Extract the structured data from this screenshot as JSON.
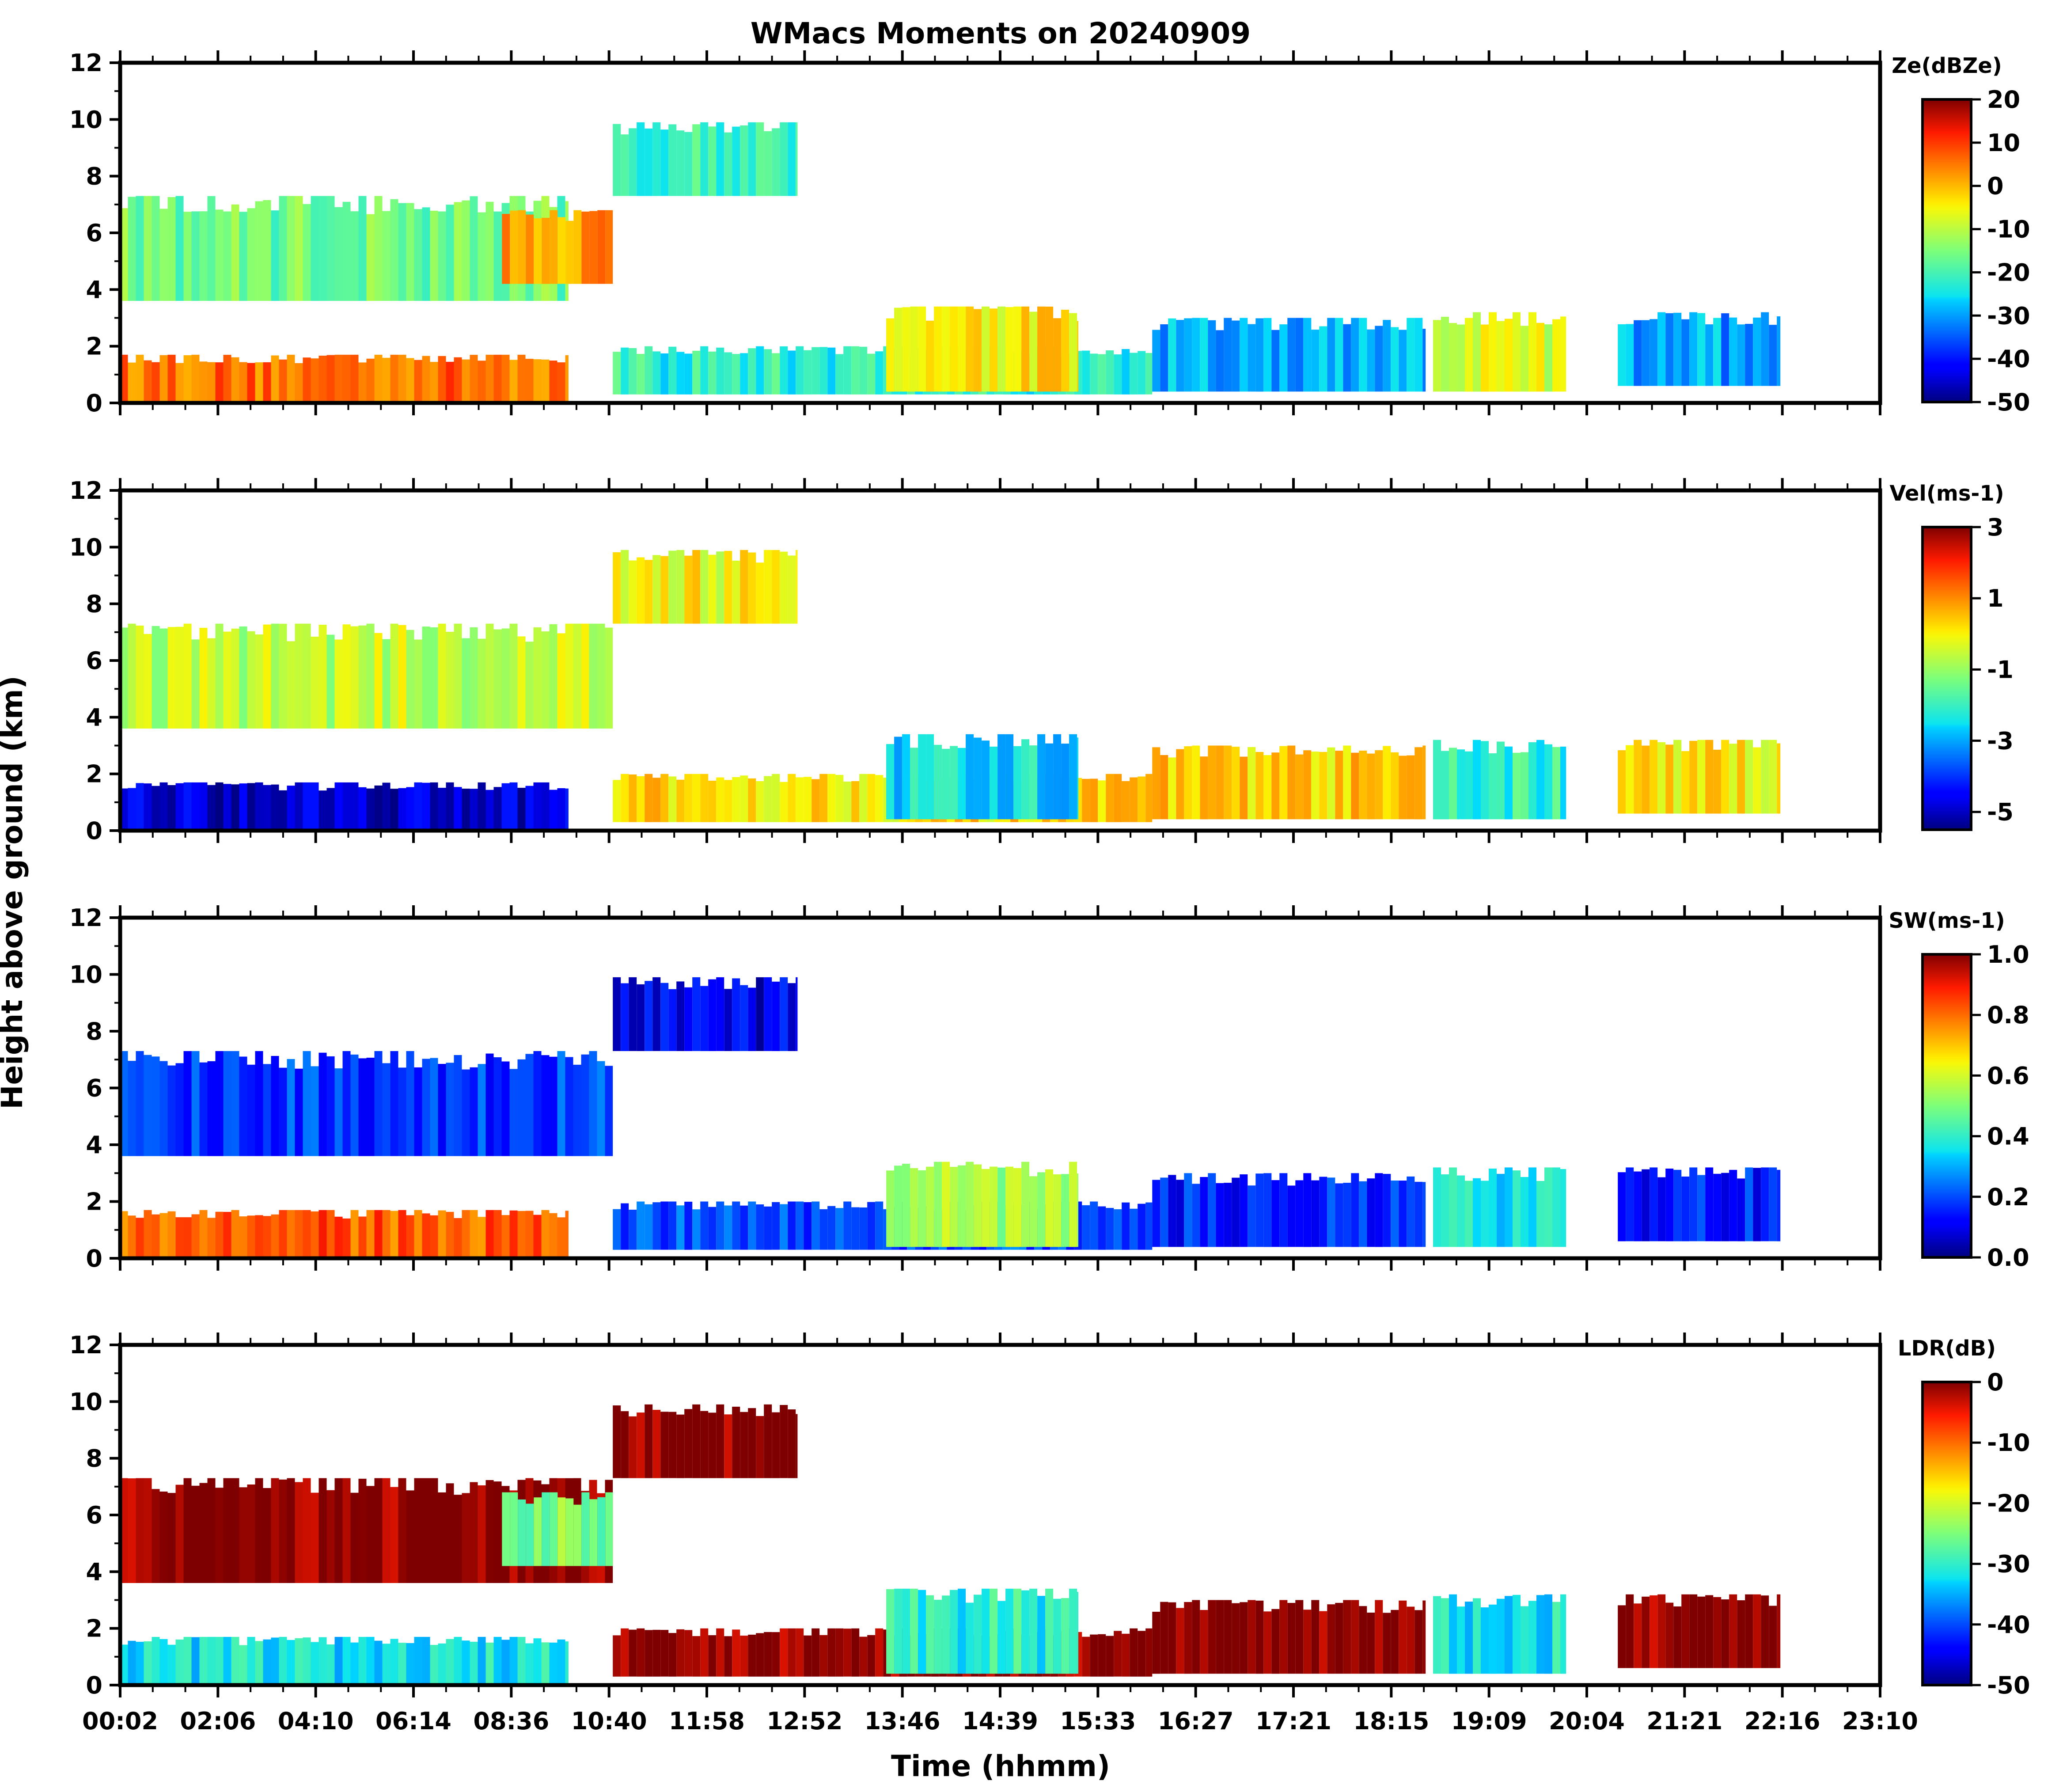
{
  "chart_data": {
    "type": "heatmap",
    "title": "WMacs Moments on 20240909",
    "xlabel": "Time (hhmm)",
    "ylabel": "Height above ground (km)",
    "x_range_hours": [
      0.033,
      23.85
    ],
    "x_tick_labels": [
      "00:02",
      "02:06",
      "04:10",
      "06:14",
      "08:36",
      "10:40",
      "11:58",
      "12:52",
      "13:46",
      "14:39",
      "15:33",
      "16:27",
      "17:21",
      "18:15",
      "19:09",
      "20:04",
      "21:21",
      "22:16",
      "23:10"
    ],
    "ylim": [
      0,
      12
    ],
    "y_ticks": [
      0,
      2,
      4,
      6,
      8,
      10,
      12
    ],
    "panels": [
      {
        "name": "Ze",
        "colorbar_label": "Ze(dBZe)",
        "colorbar_range": [
          -50,
          20
        ],
        "colorbar_ticks": [
          "20",
          "10",
          "0",
          "-10",
          "-20",
          "-30",
          "-40",
          "-50"
        ],
        "cloud_regions": [
          {
            "t0": 0.03,
            "t1": 6.1,
            "h0": 0.0,
            "h1": 1.7,
            "value": 6
          },
          {
            "t0": 0.03,
            "t1": 6.1,
            "h0": 3.6,
            "h1": 7.3,
            "value": -16
          },
          {
            "t0": 5.2,
            "t1": 6.7,
            "h0": 4.2,
            "h1": 6.8,
            "value": 2
          },
          {
            "t0": 6.7,
            "t1": 9.2,
            "h0": 7.3,
            "h1": 9.9,
            "value": -20
          },
          {
            "t0": 6.7,
            "t1": 14.0,
            "h0": 0.3,
            "h1": 2.0,
            "value": -22
          },
          {
            "t0": 10.4,
            "t1": 13.0,
            "h0": 0.4,
            "h1": 3.4,
            "value": -4
          },
          {
            "t0": 14.0,
            "t1": 17.7,
            "h0": 0.4,
            "h1": 3.0,
            "value": -30
          },
          {
            "t0": 17.8,
            "t1": 19.6,
            "h0": 0.4,
            "h1": 3.2,
            "value": -8
          },
          {
            "t0": 20.3,
            "t1": 22.5,
            "h0": 0.6,
            "h1": 3.2,
            "value": -30
          }
        ]
      },
      {
        "name": "Vel",
        "colorbar_label": "Vel(ms-1)",
        "colorbar_range": [
          -5.5,
          3
        ],
        "colorbar_ticks": [
          "3",
          "1",
          "-1",
          "-3",
          "-5"
        ],
        "cloud_regions": [
          {
            "t0": 0.03,
            "t1": 6.1,
            "h0": 0.0,
            "h1": 1.7,
            "value": -4.8
          },
          {
            "t0": 0.03,
            "t1": 6.7,
            "h0": 3.6,
            "h1": 7.3,
            "value": -0.6
          },
          {
            "t0": 6.7,
            "t1": 9.2,
            "h0": 7.3,
            "h1": 9.9,
            "value": -0.1
          },
          {
            "t0": 6.7,
            "t1": 14.0,
            "h0": 0.3,
            "h1": 2.0,
            "value": 0.2
          },
          {
            "t0": 10.4,
            "t1": 13.0,
            "h0": 0.4,
            "h1": 3.4,
            "value": -2.5
          },
          {
            "t0": 14.0,
            "t1": 17.7,
            "h0": 0.4,
            "h1": 3.0,
            "value": 0.3
          },
          {
            "t0": 17.8,
            "t1": 19.6,
            "h0": 0.4,
            "h1": 3.2,
            "value": -2.0
          },
          {
            "t0": 20.3,
            "t1": 22.5,
            "h0": 0.6,
            "h1": 3.2,
            "value": 0.0
          }
        ]
      },
      {
        "name": "SW",
        "colorbar_label": "SW(ms-1)",
        "colorbar_range": [
          0.0,
          1.0
        ],
        "colorbar_ticks": [
          "1.0",
          "0.8",
          "0.6",
          "0.4",
          "0.2",
          "0.0"
        ],
        "cloud_regions": [
          {
            "t0": 0.03,
            "t1": 6.1,
            "h0": 0.0,
            "h1": 1.7,
            "value": 0.82
          },
          {
            "t0": 0.03,
            "t1": 6.7,
            "h0": 3.6,
            "h1": 7.3,
            "value": 0.18
          },
          {
            "t0": 6.7,
            "t1": 9.2,
            "h0": 7.3,
            "h1": 9.9,
            "value": 0.1
          },
          {
            "t0": 6.7,
            "t1": 14.0,
            "h0": 0.3,
            "h1": 2.0,
            "value": 0.2
          },
          {
            "t0": 10.4,
            "t1": 13.0,
            "h0": 0.4,
            "h1": 3.4,
            "value": 0.55
          },
          {
            "t0": 14.0,
            "t1": 17.7,
            "h0": 0.4,
            "h1": 3.0,
            "value": 0.15
          },
          {
            "t0": 17.8,
            "t1": 19.6,
            "h0": 0.4,
            "h1": 3.2,
            "value": 0.35
          },
          {
            "t0": 20.3,
            "t1": 22.5,
            "h0": 0.6,
            "h1": 3.2,
            "value": 0.15
          }
        ]
      },
      {
        "name": "LDR",
        "colorbar_label": "LDR(dB)",
        "colorbar_range": [
          -50,
          0
        ],
        "colorbar_ticks": [
          "0",
          "-10",
          "-20",
          "-30",
          "-40",
          "-50"
        ],
        "cloud_regions": [
          {
            "t0": 0.03,
            "t1": 6.1,
            "h0": 0.0,
            "h1": 1.7,
            "value": -32
          },
          {
            "t0": 0.03,
            "t1": 6.7,
            "h0": 3.6,
            "h1": 7.3,
            "value": 0
          },
          {
            "t0": 5.2,
            "t1": 6.7,
            "h0": 4.2,
            "h1": 6.8,
            "value": -25
          },
          {
            "t0": 6.7,
            "t1": 9.2,
            "h0": 7.3,
            "h1": 9.9,
            "value": 0
          },
          {
            "t0": 6.7,
            "t1": 14.0,
            "h0": 0.3,
            "h1": 2.0,
            "value": 0
          },
          {
            "t0": 10.4,
            "t1": 13.0,
            "h0": 0.4,
            "h1": 3.4,
            "value": -30
          },
          {
            "t0": 14.0,
            "t1": 17.7,
            "h0": 0.4,
            "h1": 3.0,
            "value": 0
          },
          {
            "t0": 17.8,
            "t1": 19.6,
            "h0": 0.4,
            "h1": 3.2,
            "value": -32
          },
          {
            "t0": 20.3,
            "t1": 22.5,
            "h0": 0.6,
            "h1": 3.2,
            "value": 0
          }
        ]
      }
    ]
  }
}
